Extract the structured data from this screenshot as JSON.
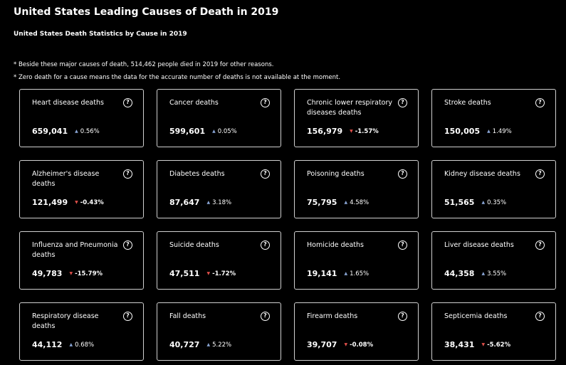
{
  "header": {
    "title": "United States Leading Causes of Death in 2019",
    "subtitle": "United States Death Statistics by Cause in 2019"
  },
  "notes": [
    "* Beside these major causes of death, 514,462 people died in 2019 for other reasons.",
    "* Zero death for a cause means the data for the accurate number of deaths is not available at the moment."
  ],
  "help_glyph": "?",
  "colors": {
    "up": "#8aa6d6",
    "down": "#e0504a",
    "border": "#d0d0d0"
  },
  "cards": [
    {
      "id": "heart-disease",
      "label": "Heart disease deaths",
      "value": "659,041",
      "direction": "up",
      "arrow": "▲",
      "change": "0.56%"
    },
    {
      "id": "cancer",
      "label": "Cancer deaths",
      "value": "599,601",
      "direction": "up",
      "arrow": "▲",
      "change": "0.05%"
    },
    {
      "id": "chronic-lower-respiratory",
      "label": "Chronic lower respiratory diseases deaths",
      "value": "156,979",
      "direction": "down",
      "arrow": "▼",
      "change": "-1.57%"
    },
    {
      "id": "stroke",
      "label": "Stroke deaths",
      "value": "150,005",
      "direction": "up",
      "arrow": "▲",
      "change": "1.49%"
    },
    {
      "id": "alzheimers",
      "label": "Alzheimer's disease deaths",
      "value": "121,499",
      "direction": "down",
      "arrow": "▼",
      "change": "-0.43%"
    },
    {
      "id": "diabetes",
      "label": "Diabetes deaths",
      "value": "87,647",
      "direction": "up",
      "arrow": "▲",
      "change": "3.18%"
    },
    {
      "id": "poisoning",
      "label": "Poisoning deaths",
      "value": "75,795",
      "direction": "up",
      "arrow": "▲",
      "change": "4.58%"
    },
    {
      "id": "kidney-disease",
      "label": "Kidney disease deaths",
      "value": "51,565",
      "direction": "up",
      "arrow": "▲",
      "change": "0.35%"
    },
    {
      "id": "influenza-pneumonia",
      "label": "Influenza and Pneumonia deaths",
      "value": "49,783",
      "direction": "down",
      "arrow": "▼",
      "change": "-15.79%"
    },
    {
      "id": "suicide",
      "label": "Suicide deaths",
      "value": "47,511",
      "direction": "down",
      "arrow": "▼",
      "change": "-1.72%"
    },
    {
      "id": "homicide",
      "label": "Homicide deaths",
      "value": "19,141",
      "direction": "up",
      "arrow": "▲",
      "change": "1.65%"
    },
    {
      "id": "liver-disease",
      "label": "Liver disease deaths",
      "value": "44,358",
      "direction": "up",
      "arrow": "▲",
      "change": "3.55%"
    },
    {
      "id": "respiratory-disease",
      "label": "Respiratory disease deaths",
      "value": "44,112",
      "direction": "up",
      "arrow": "▲",
      "change": "0.68%"
    },
    {
      "id": "fall",
      "label": "Fall deaths",
      "value": "40,727",
      "direction": "up",
      "arrow": "▲",
      "change": "5.22%"
    },
    {
      "id": "firearm",
      "label": "Firearm deaths",
      "value": "39,707",
      "direction": "down",
      "arrow": "▼",
      "change": "-0.08%"
    },
    {
      "id": "septicemia",
      "label": "Septicemia deaths",
      "value": "38,431",
      "direction": "down",
      "arrow": "▼",
      "change": "-5.62%"
    }
  ]
}
